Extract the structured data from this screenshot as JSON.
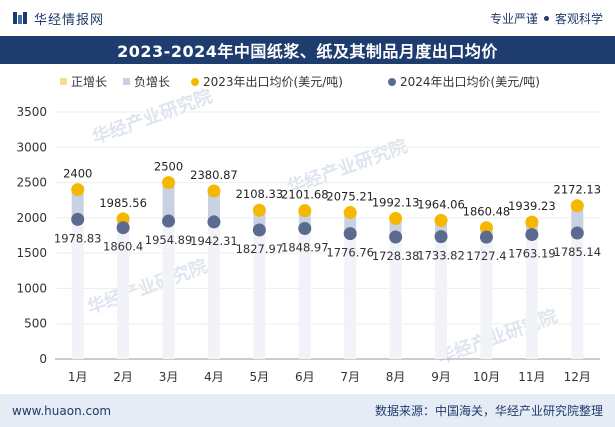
{
  "header": {
    "brand_name": "华经情报网",
    "slogan_left": "专业严谨",
    "slogan_right": "客观科学"
  },
  "title": "2023-2024年中国纸浆、纸及其制品月度出口均价",
  "legend": {
    "positive": "正增长",
    "negative": "负增长",
    "series_2023": "2023年出口均价(美元/吨)",
    "series_2024": "2024年出口均价(美元/吨)"
  },
  "watermarks": [
    "华经产业研究院",
    "华经产业研究院",
    "华经产业研究院",
    "华经产业研究院"
  ],
  "footer": {
    "website": "www.huaon.com",
    "source": "数据来源：中国海关，华经产业研究院整理"
  },
  "colors": {
    "title_bg": "#1e3c6e",
    "series_2023": "#f5b800",
    "series_2024": "#5b6a8f",
    "negative_bar": "#c9d1e3",
    "positive_bar": "#f6dc8f"
  },
  "chart_data": {
    "type": "line",
    "title": "2023-2024年中国纸浆、纸及其制品月度出口均价",
    "categories": [
      "1月",
      "2月",
      "3月",
      "4月",
      "5月",
      "6月",
      "7月",
      "8月",
      "9月",
      "10月",
      "11月",
      "12月"
    ],
    "series": [
      {
        "name": "2023年出口均价(美元/吨)",
        "values": [
          2400,
          1985.56,
          2500,
          2380.87,
          2108.33,
          2101.68,
          2075.21,
          1992.13,
          1964.06,
          1860.48,
          1939.23,
          2172.13
        ],
        "labels": [
          "2400",
          "1985.56",
          "2500",
          "2380.87",
          "2108.33",
          "2101.68",
          "2075.21",
          "1992.13",
          "1964.06",
          "1860.48",
          "1939.23",
          "2172.13"
        ]
      },
      {
        "name": "2024年出口均价(美元/吨)",
        "values": [
          1978.83,
          1860.4,
          1954.89,
          1942.31,
          1827.97,
          1848.97,
          1776.76,
          1728.38,
          1733.82,
          1727.4,
          1763.19,
          1785.14
        ],
        "labels": [
          "1978.83",
          "1860.4",
          "1954.89",
          "1942.31",
          "1827.97",
          "1848.97",
          "1776.76",
          "1728.38",
          "1733.82",
          "1727.4",
          "1763.19",
          "1785.14"
        ]
      }
    ],
    "ylim": [
      0,
      3500
    ],
    "yticks": [
      0,
      500,
      1000,
      1500,
      2000,
      2500,
      3000,
      3500
    ],
    "ytick_labels": [
      "0",
      "500",
      "1000",
      "1500",
      "2000",
      "2500",
      "3000",
      "3500"
    ],
    "xlabel": "",
    "ylabel": "",
    "legend_position": "top"
  }
}
